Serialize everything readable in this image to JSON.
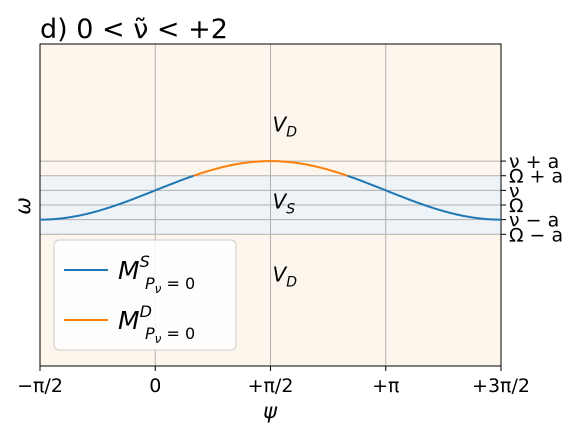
{
  "chart_data": {
    "type": "line",
    "title": "d) 0 < ν̃ < +2",
    "xlabel": "ψ",
    "ylabel": "ω",
    "xlim": [
      -1.5708,
      4.7124
    ],
    "ylim": [
      -2.2,
      2.2
    ],
    "grid": true,
    "x_ticks": [
      {
        "value": -1.5708,
        "label": "−π/2"
      },
      {
        "value": 0,
        "label": "0"
      },
      {
        "value": 1.5708,
        "label": "+π/2"
      },
      {
        "value": 3.1416,
        "label": "+π"
      },
      {
        "value": 4.7124,
        "label": "+3π/2"
      }
    ],
    "y_levels": [
      {
        "value": 0.6,
        "label": "ν + a"
      },
      {
        "value": 0.4,
        "label": "Ω + a"
      },
      {
        "value": 0.2,
        "label": "ν"
      },
      {
        "value": 0.0,
        "label": "Ω"
      },
      {
        "value": -0.2,
        "label": "ν − a"
      },
      {
        "value": -0.4,
        "label": "Ω − a"
      }
    ],
    "band": {
      "from": -0.4,
      "to": 0.4,
      "color": "#eef3f8"
    },
    "outer_region_color": "#fdf6ec",
    "region_labels": [
      {
        "text": "V_D",
        "main": "V",
        "sub": "D",
        "x": 1.5708,
        "y": 1.1
      },
      {
        "text": "V_S",
        "main": "V",
        "sub": "S",
        "x": 1.5708,
        "y": 0.05
      },
      {
        "text": "V_D",
        "main": "V",
        "sub": "D",
        "x": 1.5708,
        "y": -0.95
      }
    ],
    "curve": {
      "center": 0.2,
      "amplitude": 0.4,
      "form": "center + amplitude*sin(psi)"
    },
    "series": [
      {
        "name": "M^S_{P_ν=0}",
        "color": "#1f77b4",
        "segments": [
          [
            -1.5708,
            0.5236
          ],
          [
            2.618,
            4.7124
          ]
        ]
      },
      {
        "name": "M^D_{P_ν=0}",
        "color": "#ff7f0e",
        "segments": [
          [
            0.5236,
            2.618
          ]
        ]
      }
    ],
    "legend": {
      "placement": "lower-left",
      "entries": [
        {
          "main": "M",
          "sup": "S",
          "sub": "P",
          "subsub": "ν",
          "tail": " = 0",
          "color": "#1f77b4"
        },
        {
          "main": "M",
          "sup": "D",
          "sub": "P",
          "subsub": "ν",
          "tail": " = 0",
          "color": "#ff7f0e"
        }
      ]
    }
  }
}
